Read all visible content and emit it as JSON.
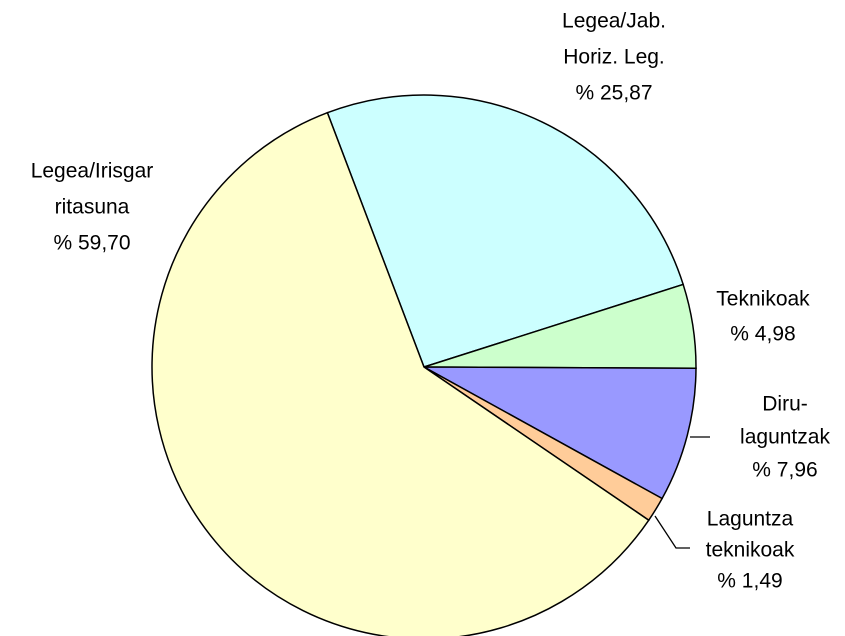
{
  "chart_data": {
    "type": "pie",
    "categories": [
      [
        "Legea/Jab.",
        "Horiz. Leg."
      ],
      [
        "Teknikoak"
      ],
      [
        "Diru-",
        "laguntzak"
      ],
      [
        "Laguntza",
        "teknikoak"
      ],
      [
        "Legea/Irisgar",
        "ritasuna"
      ]
    ],
    "values": [
      25.87,
      4.98,
      7.96,
      1.49,
      59.7
    ],
    "value_labels": [
      "% 25,87",
      "% 4,98",
      "% 7,96",
      "% 1,49",
      "% 59,70"
    ],
    "colors": [
      "#ccffff",
      "#ccffcc",
      "#9999ff",
      "#ffcc99",
      "#ffffcc"
    ]
  }
}
